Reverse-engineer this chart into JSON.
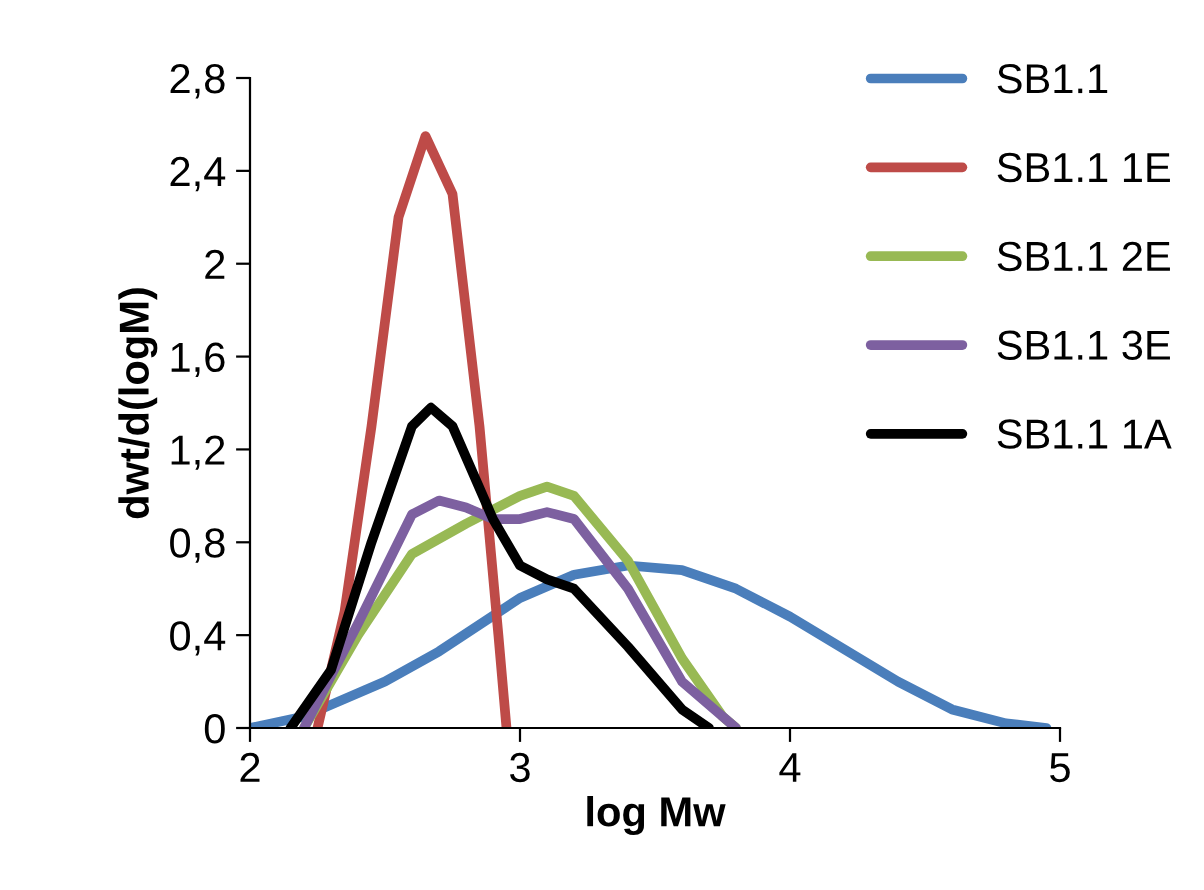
{
  "chart_data": {
    "type": "line",
    "xlabel": "log Mw",
    "ylabel": "dwt/d(logM)",
    "xlim": [
      2,
      5
    ],
    "xticks": [
      2,
      3,
      4,
      5
    ],
    "ylim": [
      0,
      2.8
    ],
    "yticks": [
      {
        "value": 0,
        "label": "0"
      },
      {
        "value": 0.4,
        "label": "0,4"
      },
      {
        "value": 0.8,
        "label": "0,8"
      },
      {
        "value": 1.2,
        "label": "1,2"
      },
      {
        "value": 1.6,
        "label": "1,6"
      },
      {
        "value": 2,
        "label": "2"
      },
      {
        "value": 2.4,
        "label": "2,4"
      },
      {
        "value": 2.8,
        "label": "2,8"
      }
    ],
    "grid": false,
    "legend": "right",
    "marker": "none",
    "line_style": "solid",
    "series": [
      {
        "name": "SB1.1",
        "color": "#4a7ebb",
        "x": [
          2.0,
          2.2,
          2.5,
          2.7,
          3.0,
          3.2,
          3.4,
          3.6,
          3.8,
          4.0,
          4.2,
          4.4,
          4.6,
          4.8,
          4.95
        ],
        "values": [
          0,
          0.05,
          0.2,
          0.33,
          0.56,
          0.66,
          0.7,
          0.68,
          0.6,
          0.48,
          0.34,
          0.2,
          0.08,
          0.02,
          0
        ]
      },
      {
        "name": "SB1.1 1E",
        "color": "#be4b48",
        "x": [
          2.25,
          2.35,
          2.45,
          2.55,
          2.65,
          2.75,
          2.85,
          2.92,
          2.95
        ],
        "values": [
          0,
          0.5,
          1.3,
          2.2,
          2.55,
          2.3,
          1.3,
          0.4,
          0
        ]
      },
      {
        "name": "SB1.1 2E",
        "color": "#98b954",
        "x": [
          2.2,
          2.4,
          2.6,
          2.8,
          3.0,
          3.1,
          3.2,
          3.4,
          3.6,
          3.75,
          3.8
        ],
        "values": [
          0,
          0.4,
          0.75,
          0.88,
          1.0,
          1.04,
          1.0,
          0.72,
          0.3,
          0.05,
          0
        ]
      },
      {
        "name": "SB1.1 3E",
        "color": "#7d60a0",
        "x": [
          2.2,
          2.4,
          2.6,
          2.7,
          2.8,
          2.9,
          3.0,
          3.1,
          3.2,
          3.4,
          3.6,
          3.8
        ],
        "values": [
          0,
          0.45,
          0.92,
          0.98,
          0.95,
          0.9,
          0.9,
          0.93,
          0.9,
          0.6,
          0.2,
          0
        ]
      },
      {
        "name": "SB1.1 1A",
        "color": "#000000",
        "x": [
          2.15,
          2.3,
          2.45,
          2.6,
          2.67,
          2.75,
          2.9,
          3.0,
          3.1,
          3.2,
          3.4,
          3.6,
          3.7
        ],
        "values": [
          0,
          0.25,
          0.8,
          1.3,
          1.38,
          1.3,
          0.9,
          0.7,
          0.64,
          0.6,
          0.35,
          0.08,
          0
        ]
      }
    ]
  }
}
